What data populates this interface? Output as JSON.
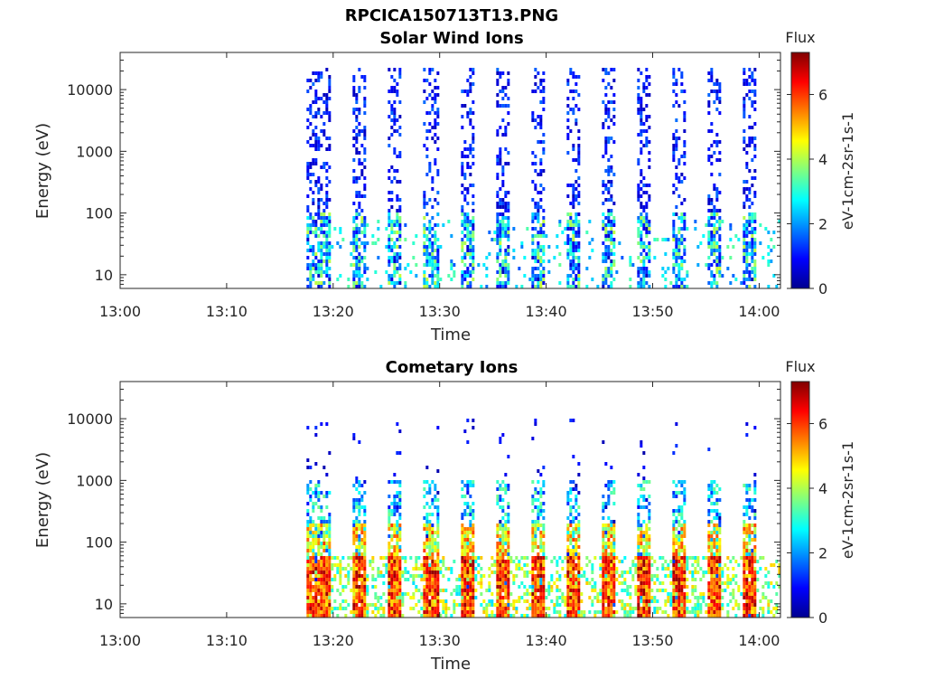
{
  "figure_title": "RPCICA150713T13.PNG",
  "chart_data": [
    {
      "type": "heatmap",
      "title": "Solar Wind Ions",
      "xlabel": "Time",
      "ylabel": "Energy (eV)",
      "x_ticks": [
        "13:00",
        "13:10",
        "13:20",
        "13:30",
        "13:40",
        "13:50",
        "14:00"
      ],
      "x_range": [
        "13:00",
        "14:02"
      ],
      "y_scale": "log",
      "y_ticks": [
        10,
        100,
        1000,
        10000
      ],
      "y_tick_labels": [
        "10",
        "100",
        "1000",
        "10000"
      ],
      "y_range": [
        6,
        40000
      ],
      "colorbar": {
        "title": "Flux",
        "label": "eV-1cm-2sr-1s-1",
        "ticks": [
          0,
          2,
          4,
          6
        ],
        "range": [
          0,
          7.3
        ],
        "colormap": "jet"
      },
      "data_start": "13:17:30",
      "sweep_period_min": 3.3,
      "sweep_starts": [
        "13:18:40",
        "13:22:00",
        "13:25:20",
        "13:28:40",
        "13:32:00",
        "13:35:20",
        "13:38:40",
        "13:42:00",
        "13:45:20",
        "13:48:40",
        "13:52:00",
        "13:55:20",
        "13:58:40"
      ],
      "typical_flux": {
        "low_energy_10_100eV": 2.5,
        "high_energy_1000_20000eV": 0.8
      }
    },
    {
      "type": "heatmap",
      "title": "Cometary Ions",
      "xlabel": "Time",
      "ylabel": "Energy (eV)",
      "x_ticks": [
        "13:00",
        "13:10",
        "13:20",
        "13:30",
        "13:40",
        "13:50",
        "14:00"
      ],
      "x_range": [
        "13:00",
        "14:02"
      ],
      "y_scale": "log",
      "y_ticks": [
        10,
        100,
        1000,
        10000
      ],
      "y_tick_labels": [
        "10",
        "100",
        "1000",
        "10000"
      ],
      "y_range": [
        6,
        40000
      ],
      "colorbar": {
        "title": "Flux",
        "label": "eV-1cm-2sr-1s-1",
        "ticks": [
          0,
          2,
          4,
          6
        ],
        "range": [
          0,
          7.3
        ],
        "colormap": "jet"
      },
      "data_start": "13:17:30",
      "sweep_period_min": 3.3,
      "sweep_starts": [
        "13:18:40",
        "13:22:00",
        "13:25:20",
        "13:28:40",
        "13:32:00",
        "13:35:20",
        "13:38:40",
        "13:42:00",
        "13:45:20",
        "13:48:40",
        "13:52:00",
        "13:55:20",
        "13:58:40"
      ],
      "typical_flux": {
        "peak_10_50eV": 6.5,
        "mid_50_300eV": 4.5,
        "high_300_1000eV": 2.0
      }
    }
  ]
}
